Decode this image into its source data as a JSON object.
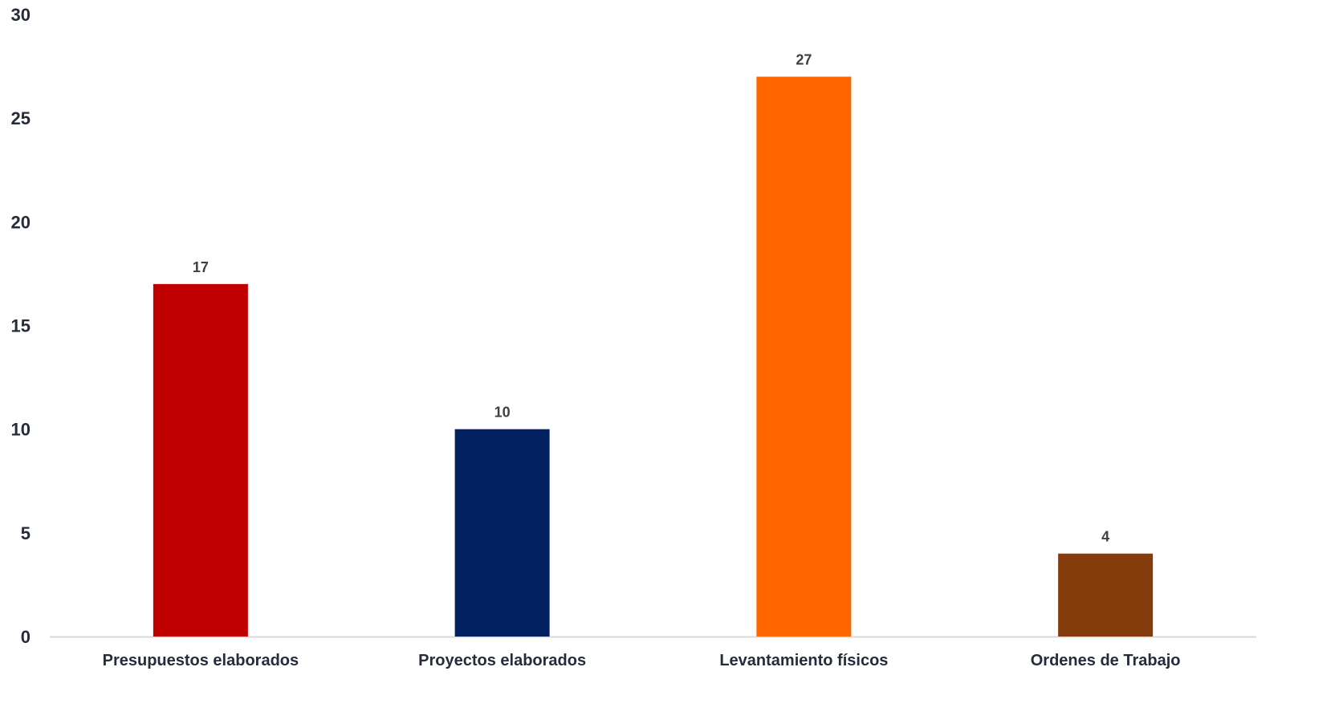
{
  "chart_data": {
    "type": "bar",
    "categories": [
      "Presupuestos elaborados",
      "Proyectos elaborados",
      "Levantamiento físicos",
      "Ordenes de Trabajo"
    ],
    "values": [
      17,
      10,
      27,
      4
    ],
    "data_labels": [
      "17",
      "10",
      "27",
      "4"
    ],
    "colors": [
      "#c00000",
      "#002060",
      "#ff6600",
      "#843c0c"
    ],
    "y_ticks": [
      0,
      5,
      10,
      15,
      20,
      25,
      30
    ],
    "ylim": [
      0,
      30
    ],
    "grid": false,
    "legend": "none",
    "axis_color": "#d9d9d9"
  }
}
